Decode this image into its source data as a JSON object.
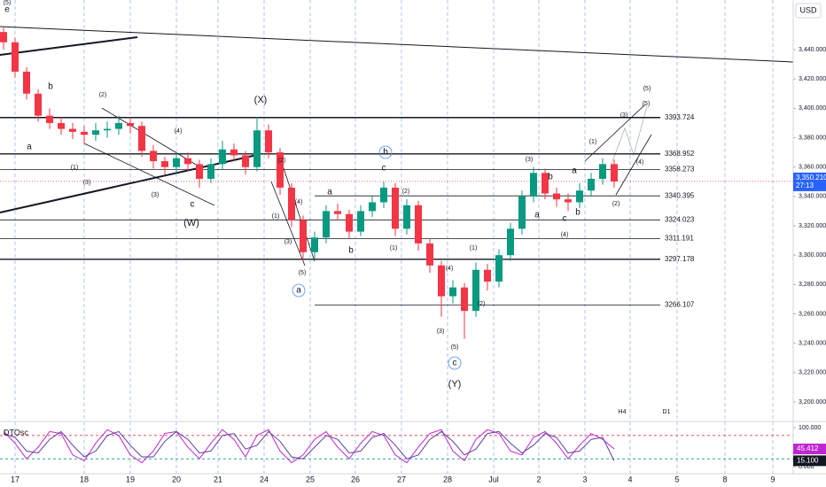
{
  "chart_data": {
    "type": "candlestick",
    "currency": "USD",
    "up_color": "#089981",
    "down_color": "#f23645",
    "candles": [
      [
        3452,
        3456,
        3440,
        3445
      ],
      [
        3445,
        3448,
        3421,
        3425
      ],
      [
        3425,
        3428,
        3406,
        3410
      ],
      [
        3410,
        3413,
        3391,
        3395
      ],
      [
        3395,
        3400,
        3386,
        3390
      ],
      [
        3390,
        3394,
        3382,
        3386
      ],
      [
        3386,
        3390,
        3379,
        3384
      ],
      [
        3384,
        3388,
        3376,
        3382
      ],
      [
        3382,
        3390,
        3378,
        3385
      ],
      [
        3385,
        3391,
        3380,
        3386
      ],
      [
        3386,
        3395,
        3382,
        3390
      ],
      [
        3390,
        3394,
        3383,
        3388
      ],
      [
        3388,
        3391,
        3367,
        3371
      ],
      [
        3371,
        3375,
        3359,
        3364
      ],
      [
        3364,
        3367,
        3355,
        3360
      ],
      [
        3360,
        3370,
        3356,
        3366
      ],
      [
        3366,
        3370,
        3357,
        3362
      ],
      [
        3362,
        3365,
        3346,
        3352
      ],
      [
        3352,
        3366,
        3349,
        3362
      ],
      [
        3362,
        3378,
        3358,
        3372
      ],
      [
        3372,
        3376,
        3364,
        3368
      ],
      [
        3368,
        3371,
        3355,
        3360
      ],
      [
        3360,
        3394,
        3357,
        3385
      ],
      [
        3385,
        3389,
        3366,
        3370
      ],
      [
        3370,
        3373,
        3341,
        3346
      ],
      [
        3346,
        3349,
        3319,
        3324
      ],
      [
        3324,
        3327,
        3296,
        3302
      ],
      [
        3302,
        3316,
        3298,
        3312
      ],
      [
        3312,
        3334,
        3308,
        3330
      ],
      [
        3330,
        3335,
        3324,
        3328
      ],
      [
        3328,
        3331,
        3311,
        3316
      ],
      [
        3316,
        3334,
        3313,
        3330
      ],
      [
        3330,
        3340,
        3326,
        3336
      ],
      [
        3336,
        3350,
        3332,
        3346
      ],
      [
        3346,
        3349,
        3313,
        3318
      ],
      [
        3318,
        3338,
        3314,
        3334
      ],
      [
        3334,
        3337,
        3303,
        3308
      ],
      [
        3308,
        3311,
        3288,
        3293
      ],
      [
        3293,
        3296,
        3258,
        3272
      ],
      [
        3272,
        3283,
        3267,
        3278
      ],
      [
        3278,
        3281,
        3243,
        3262
      ],
      [
        3262,
        3295,
        3258,
        3290
      ],
      [
        3290,
        3294,
        3276,
        3282
      ],
      [
        3282,
        3304,
        3278,
        3300
      ],
      [
        3300,
        3322,
        3296,
        3318
      ],
      [
        3318,
        3344,
        3314,
        3340
      ],
      [
        3340,
        3360,
        3336,
        3356
      ],
      [
        3356,
        3359,
        3338,
        3342
      ],
      [
        3342,
        3346,
        3333,
        3338
      ],
      [
        3338,
        3342,
        3330,
        3336
      ],
      [
        3336,
        3349,
        3332,
        3344
      ],
      [
        3344,
        3356,
        3340,
        3352
      ],
      [
        3352,
        3366,
        3348,
        3362
      ],
      [
        3362,
        3365,
        3346,
        3350.21
      ]
    ],
    "ylim": [
      3187.3,
      3473.8
    ],
    "yticks": [
      {
        "value": 3200,
        "label": "3,200.000"
      },
      {
        "value": 3220,
        "label": "3,220.000"
      },
      {
        "value": 3240,
        "label": "3,240.000"
      },
      {
        "value": 3260,
        "label": "3,260.000"
      },
      {
        "value": 3280,
        "label": "3,280.000"
      },
      {
        "value": 3300,
        "label": "3,300.000"
      },
      {
        "value": 3320,
        "label": "3,320.000"
      },
      {
        "value": 3340,
        "label": "3,340.000"
      },
      {
        "value": 3360,
        "label": "3,360.000"
      },
      {
        "value": 3380,
        "label": "3,380.000"
      },
      {
        "value": 3400,
        "label": "3,400.000"
      },
      {
        "value": 3420,
        "label": "3,420.000"
      },
      {
        "value": 3440,
        "label": "3,440.000"
      }
    ],
    "last_price": {
      "value": 3350.21,
      "label": "3,350.210"
    },
    "countdown": "27:13",
    "levels": [
      {
        "value": 3393.724,
        "color": "#131722"
      },
      {
        "value": 3368.952,
        "color": "#131722"
      },
      {
        "value": 3358.273,
        "color": "#131722"
      },
      {
        "value": 3340.395,
        "color": "#131722"
      },
      {
        "value": 3324.023,
        "color": "#131722"
      },
      {
        "value": 3311.191,
        "color": "#131722"
      },
      {
        "value": 3297.178,
        "color": "#f23645"
      },
      {
        "value": 3266.107,
        "color": "#131722"
      }
    ],
    "date_labels": [
      "17",
      "18",
      "19",
      "20",
      "21",
      "24",
      "25",
      "26",
      "27",
      "28",
      "Jul",
      "2",
      "3",
      "4",
      "5",
      "8",
      "9"
    ],
    "annotations": [
      {
        "text": "(5)",
        "color": "#e0245e"
      },
      {
        "text": "e",
        "color": "#e0245e"
      },
      {
        "text": "b",
        "color": "#131722"
      },
      {
        "text": "a",
        "color": "#131722"
      },
      {
        "text": "(2)",
        "color": "#e0245e"
      },
      {
        "text": "(4)",
        "color": "#e0245e"
      },
      {
        "text": "(1)",
        "color": "#e0245e"
      },
      {
        "text": "(3)",
        "color": "#e0245e"
      },
      {
        "text": "(3)",
        "color": "#e0245e"
      },
      {
        "text": "c",
        "color": "#131722"
      },
      {
        "text": "(W)",
        "color": "#e0245e"
      },
      {
        "text": "(X)",
        "color": "#e0245e"
      },
      {
        "text": "(2)",
        "color": "#131722"
      },
      {
        "text": "(4)",
        "color": "#131722"
      },
      {
        "text": "(1)",
        "color": "#131722"
      },
      {
        "text": "(3)",
        "color": "#131722"
      },
      {
        "text": "(5)",
        "color": "#131722"
      },
      {
        "text": "a",
        "color": "#4a8fe7",
        "circled": true
      },
      {
        "text": "a",
        "color": "#131722"
      },
      {
        "text": "b",
        "color": "#131722"
      },
      {
        "text": "c",
        "color": "#131722"
      },
      {
        "text": "b",
        "color": "#4a8fe7",
        "circled": true
      },
      {
        "text": "(2)",
        "color": "#131722"
      },
      {
        "text": "(1)",
        "color": "#131722"
      },
      {
        "text": "(4)",
        "color": "#131722"
      },
      {
        "text": "(3)",
        "color": "#131722"
      },
      {
        "text": "(5)",
        "color": "#131722"
      },
      {
        "text": "c",
        "color": "#4a8fe7",
        "circled": true
      },
      {
        "text": "(Y)",
        "color": "#e0245e"
      },
      {
        "text": "(1)",
        "color": "#4a8fe7"
      },
      {
        "text": "(2)",
        "color": "#4a8fe7"
      },
      {
        "text": "(3)",
        "color": "#4a8fe7"
      },
      {
        "text": "(4)",
        "color": "#4a8fe7"
      },
      {
        "text": "a",
        "color": "#131722"
      },
      {
        "text": "b",
        "color": "#131722"
      },
      {
        "text": "c",
        "color": "#131722"
      },
      {
        "text": "a",
        "color": "#4a8fe7"
      },
      {
        "text": "b",
        "color": "#4a8fe7"
      },
      {
        "text": "(1)",
        "color": "#131722"
      },
      {
        "text": "(2)",
        "color": "#131722"
      },
      {
        "text": "(3)",
        "color": "#131722"
      },
      {
        "text": "(4)",
        "color": "#131722"
      },
      {
        "text": "(5)",
        "color": "#131722"
      },
      {
        "text": "(5)",
        "color": "#4a8fe7"
      },
      {
        "text": "H4",
        "color": "#131722"
      },
      {
        "text": "D1",
        "color": "#131722"
      }
    ],
    "osc": {
      "title": "DTOsc",
      "ylim": [
        -18.2,
        111.4
      ],
      "yticks": [
        {
          "value": 100,
          "label": "100.000"
        },
        {
          "value": 0,
          "label": "0.000"
        }
      ],
      "levels": [
        {
          "value": 80,
          "color": "#f23645"
        },
        {
          "value": 20,
          "color": "#089981"
        }
      ],
      "series": [
        {
          "color": "#c026d3",
          "last_label": "45.412",
          "values": [
            90,
            60,
            20,
            50,
            90,
            85,
            30,
            15,
            60,
            95,
            80,
            30,
            10,
            40,
            85,
            90,
            50,
            20,
            60,
            95,
            70,
            25,
            80,
            95,
            40,
            10,
            30,
            70,
            90,
            50,
            20,
            60,
            90,
            80,
            30,
            10,
            50,
            85,
            95,
            40,
            15,
            70,
            95,
            85,
            40,
            30,
            75,
            90,
            60,
            20,
            55,
            85,
            70,
            45.412
          ]
        },
        {
          "color": "#5b3f99",
          "last_label": "15.100",
          "values": [
            85,
            75,
            40,
            35,
            70,
            90,
            55,
            25,
            40,
            80,
            90,
            55,
            25,
            25,
            65,
            90,
            70,
            35,
            40,
            80,
            85,
            45,
            55,
            90,
            65,
            25,
            20,
            50,
            80,
            70,
            35,
            40,
            75,
            85,
            55,
            20,
            30,
            70,
            90,
            65,
            30,
            45,
            85,
            90,
            60,
            35,
            55,
            85,
            75,
            35,
            40,
            70,
            75,
            15.1
          ]
        }
      ]
    }
  }
}
